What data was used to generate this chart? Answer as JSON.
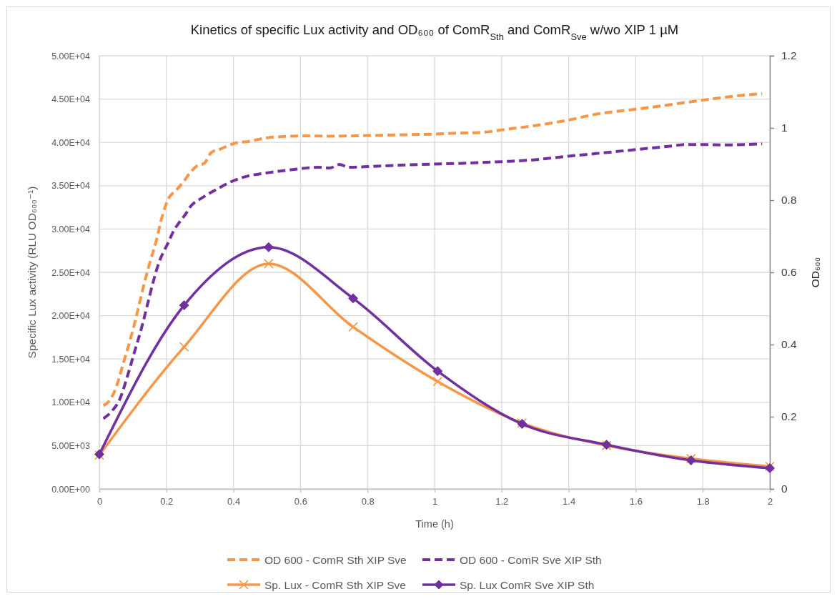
{
  "chart_data": {
    "type": "line",
    "title": "Kinetics of specific Lux activity and OD₆₀₀ of ComR$_{Sth}$ and ComR$_{Sve}$ w/wo XIP 1 µM",
    "xlabel": "Time (h)",
    "ylabel": "Specific Lux activity (RLU OD₆₀₀⁻¹)",
    "y2label": "OD₆₀₀",
    "xlim": [
      0,
      2
    ],
    "xticks": [
      0,
      0.2,
      0.4,
      0.6,
      0.8,
      1,
      1.2,
      1.4,
      1.6,
      1.8,
      2
    ],
    "ylim": [
      0,
      50000
    ],
    "yticks": [
      {
        "value": 0,
        "label": "0.00E+00"
      },
      {
        "value": 5000,
        "label": "5.00E+03"
      },
      {
        "value": 10000,
        "label": "1.00E+04"
      },
      {
        "value": 15000,
        "label": "1.50E+04"
      },
      {
        "value": 20000,
        "label": "2.00E+04"
      },
      {
        "value": 25000,
        "label": "2.50E+04"
      },
      {
        "value": 30000,
        "label": "3.00E+04"
      },
      {
        "value": 35000,
        "label": "3.50E+04"
      },
      {
        "value": 40000,
        "label": "4.00E+04"
      },
      {
        "value": 45000,
        "label": "4.50E+04"
      },
      {
        "value": 50000,
        "label": "5.00E+04"
      }
    ],
    "y2lim": [
      0,
      1.2
    ],
    "y2ticks": [
      0,
      0.2,
      0.4,
      0.6,
      0.8,
      1,
      1.2
    ],
    "grid": true,
    "legend": "bottom",
    "series": [
      {
        "name": "OD 600 - ComR Sth XIP Sve",
        "color": "#f79646",
        "axis": "y2",
        "line_style": "dashed",
        "x": [
          0.012,
          0.03,
          0.051,
          0.072,
          0.093,
          0.115,
          0.132,
          0.15,
          0.168,
          0.189,
          0.207,
          0.228,
          0.25,
          0.27,
          0.291,
          0.313,
          0.334,
          0.362,
          0.405,
          0.44,
          0.503,
          0.546,
          0.6,
          0.687,
          0.8,
          0.9,
          1.0,
          1.083,
          1.133,
          1.211,
          1.288,
          1.4,
          1.481,
          1.6,
          1.675,
          1.8,
          1.892,
          1.977
        ],
        "values": [
          0.231,
          0.244,
          0.284,
          0.35,
          0.416,
          0.496,
          0.562,
          0.625,
          0.681,
          0.76,
          0.806,
          0.826,
          0.85,
          0.875,
          0.895,
          0.902,
          0.932,
          0.942,
          0.958,
          0.962,
          0.973,
          0.976,
          0.978,
          0.977,
          0.979,
          0.981,
          0.983,
          0.986,
          0.987,
          0.996,
          1.005,
          1.022,
          1.038,
          1.052,
          1.061,
          1.077,
          1.088,
          1.095
        ]
      },
      {
        "name": "OD 600 - ComR Sve XIP Sth",
        "color": "#7030a0",
        "axis": "y2",
        "line_style": "dashed",
        "x": [
          0.012,
          0.037,
          0.062,
          0.083,
          0.104,
          0.125,
          0.143,
          0.161,
          0.178,
          0.196,
          0.207,
          0.221,
          0.235,
          0.26,
          0.27,
          0.306,
          0.348,
          0.398,
          0.44,
          0.503,
          0.581,
          0.652,
          0.687,
          0.716,
          0.744,
          0.8,
          0.9,
          1.0,
          1.083,
          1.133,
          1.211,
          1.288,
          1.4,
          1.481,
          1.6,
          1.697,
          1.752,
          1.8,
          1.868,
          1.977
        ],
        "values": [
          0.195,
          0.215,
          0.251,
          0.31,
          0.377,
          0.443,
          0.509,
          0.575,
          0.628,
          0.665,
          0.685,
          0.714,
          0.734,
          0.765,
          0.78,
          0.806,
          0.829,
          0.853,
          0.866,
          0.876,
          0.885,
          0.891,
          0.889,
          0.899,
          0.891,
          0.893,
          0.897,
          0.9,
          0.902,
          0.904,
          0.907,
          0.911,
          0.922,
          0.929,
          0.94,
          0.949,
          0.954,
          0.954,
          0.953,
          0.956
        ]
      },
      {
        "name": "Sp. Lux - ComR Sth XIP Sve",
        "color": "#f79646",
        "line_style": "solid",
        "marker": "cross",
        "x": [
          0,
          0.253,
          0.505,
          0.757,
          1.009,
          1.261,
          1.513,
          1.765,
          2
        ],
        "values": [
          3900,
          16400,
          26000,
          18700,
          12400,
          7600,
          5000,
          3500,
          2600
        ]
      },
      {
        "name": "Sp. Lux ComR Sve XIP Sth",
        "color": "#7030a0",
        "line_style": "solid",
        "marker": "diamond",
        "x": [
          0,
          0.253,
          0.505,
          0.757,
          1.009,
          1.261,
          1.513,
          1.765,
          2
        ],
        "values": [
          4000,
          21200,
          27900,
          22000,
          13600,
          7500,
          5100,
          3300,
          2400
        ]
      }
    ]
  }
}
